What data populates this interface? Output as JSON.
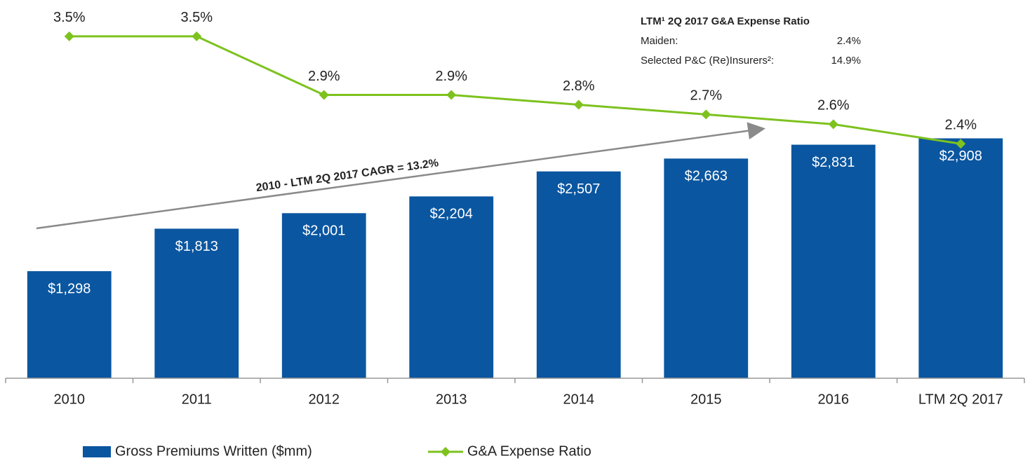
{
  "chart_data": {
    "type": "bar",
    "categories": [
      "2010",
      "2011",
      "2012",
      "2013",
      "2014",
      "2015",
      "2016",
      "LTM 2Q 2017"
    ],
    "series": [
      {
        "name": "Gross Premiums Written ($mm)",
        "type": "bar",
        "color": "#0a56a0",
        "values": [
          1298,
          1813,
          2001,
          2204,
          2507,
          2663,
          2831,
          2908
        ],
        "value_labels": [
          "$1,298",
          "$1,813",
          "$2,001",
          "$2,204",
          "$2,507",
          "$2,663",
          "$2,831",
          "$2,908"
        ]
      },
      {
        "name": "G&A Expense Ratio",
        "type": "line",
        "axis": "y2",
        "color": "#7dc21e",
        "values": [
          3.5,
          3.5,
          2.9,
          2.9,
          2.8,
          2.7,
          2.6,
          2.4
        ],
        "value_labels": [
          "3.5%",
          "3.5%",
          "2.9%",
          "2.9%",
          "2.8%",
          "2.7%",
          "2.6%",
          "2.4%"
        ]
      }
    ],
    "ylim": [
      0,
      4500
    ],
    "y2lim": [
      0,
      3.8
    ],
    "annotations": {
      "cagr": "2010 - LTM 2Q 2017 CAGR = 13.2%",
      "box_title": "LTM¹ 2Q 2017 G&A Expense Ratio",
      "rows": [
        [
          "Maiden:",
          "2.4%"
        ],
        [
          "Selected P&C (Re)Insurers²:",
          "14.9%"
        ]
      ]
    },
    "legend": "bottom"
  }
}
